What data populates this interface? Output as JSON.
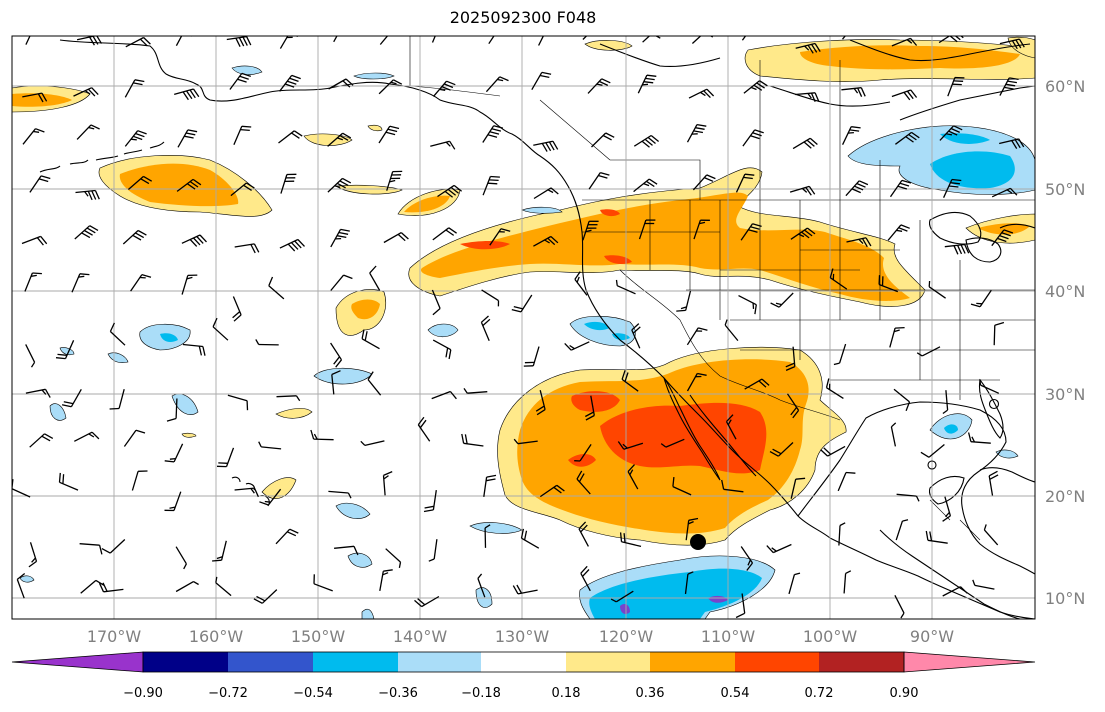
{
  "title": "2025092300 F048",
  "latitude_labels": [
    "60°N",
    "50°N",
    "40°N",
    "30°N",
    "20°N",
    "10°N"
  ],
  "longitude_labels": [
    "170°W",
    "160°W",
    "150°W",
    "140°W",
    "130°W",
    "120°W",
    "110°W",
    "100°W",
    "90°W"
  ],
  "colorbar": {
    "ticks": [
      "−0.90",
      "−0.72",
      "−0.54",
      "−0.36",
      "−0.18",
      "0.18",
      "0.36",
      "0.54",
      "0.72",
      "0.90"
    ],
    "colors": [
      "#9933cc",
      "#000088",
      "#3355cc",
      "#00bbee",
      "#aaddf8",
      "#ffffff",
      "#ffe98a",
      "#ffa500",
      "#ff4500",
      "#b22222",
      "#ff88aa"
    ]
  },
  "legend_colors": {
    "neg_light": "#aaddf8",
    "neg_mid": "#00bbee",
    "neg_dark": "#3355cc",
    "neg_vdark": "#7744cc",
    "pos_light": "#ffe98a",
    "pos_mid": "#ffa500",
    "pos_dark": "#ff4500"
  }
}
